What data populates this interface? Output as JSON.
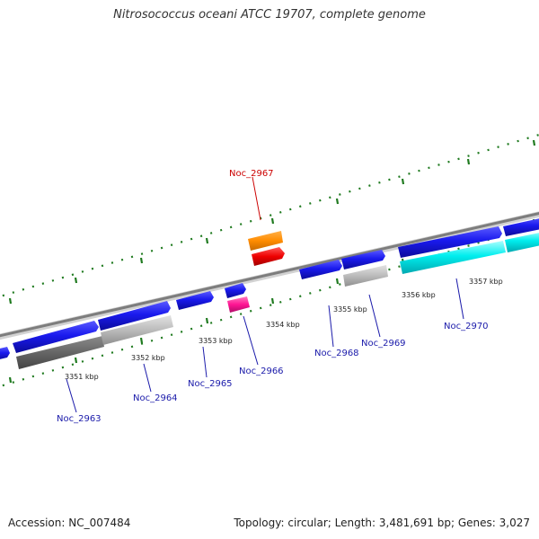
{
  "title": "Nitrosococcus oceani ATCC 19707, complete genome",
  "footer": {
    "accession": "Accession: NC_007484",
    "topology": "Topology: circular; Length: 3,481,691 bp; Genes: 3,027"
  },
  "colors": {
    "forward_gene": "#1a1aee",
    "reverse_gene": "#00e5ee",
    "backbone": "#888888",
    "tick_marks": "#1f7a1f",
    "highlight_label": "#cc0000",
    "gene_label": "#1a1aaa",
    "orange_feature": "#ff8c00",
    "red_feature": "#ee0000",
    "pink_feature": "#ff1493",
    "gray_feature": "#bbbbbb",
    "dark_gray_feature": "#666666"
  },
  "kbp_ticks": [
    "3351 kbp",
    "3352 kbp",
    "3353 kbp",
    "3354 kbp",
    "3355 kbp",
    "3356 kbp",
    "3357 kbp"
  ],
  "gene_labels": [
    "Noc_2963",
    "Noc_2964",
    "Noc_2965",
    "Noc_2966",
    "Noc_2967",
    "Noc_2968",
    "Noc_2969",
    "Noc_2970"
  ],
  "highlighted_gene": "Noc_2967"
}
